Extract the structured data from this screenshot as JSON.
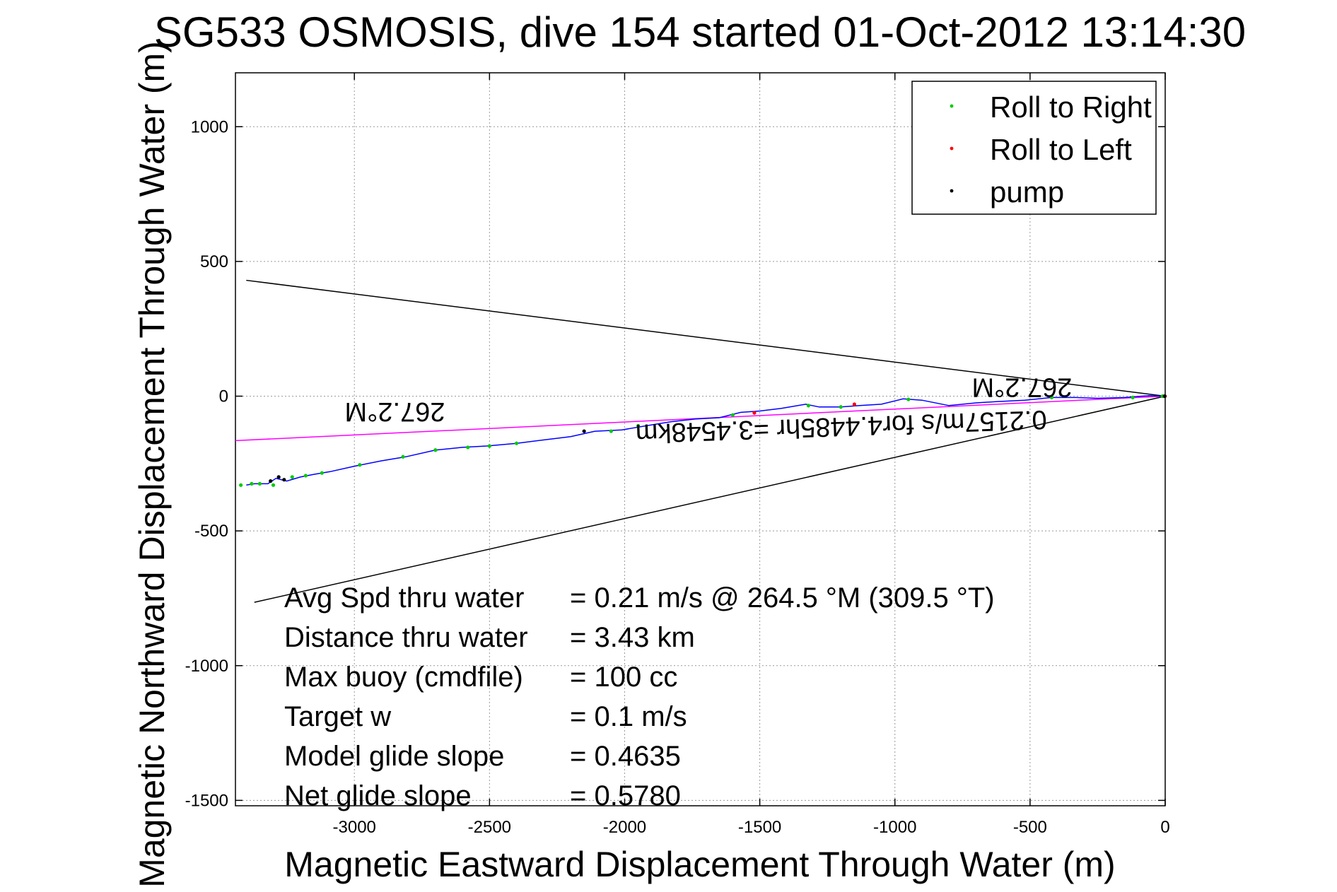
{
  "chart_data": {
    "type": "line",
    "title": "SG533 OSMOSIS, dive 154 started 01-Oct-2012 13:14:30",
    "xlabel": "Magnetic Eastward Displacement Through Water (m)",
    "ylabel": "Magnetic Northward Displacement Through Water (m)",
    "xlim": [
      -3440,
      0
    ],
    "ylim": [
      -1520,
      1200
    ],
    "xticks": [
      -3000,
      -2500,
      -2000,
      -1500,
      -1000,
      -500,
      0
    ],
    "yticks": [
      -1500,
      -1000,
      -500,
      0,
      500,
      1000
    ],
    "grid": true,
    "legend_position": "top-right",
    "legend": [
      {
        "label": "Roll to Right",
        "color": "#00cc00"
      },
      {
        "label": "Roll to Left",
        "color": "#ff0000"
      },
      {
        "label": "pump",
        "color": "#000000"
      }
    ],
    "series": [
      {
        "name": "",
        "color": "#0000ff",
        "x": [
          0,
          -60,
          -150,
          -250,
          -330,
          -420,
          -520,
          -620,
          -700,
          -800,
          -900,
          -970,
          -1050,
          -1130,
          -1200,
          -1280,
          -1330,
          -1420,
          -1500,
          -1570,
          -1650,
          -1740,
          -1830,
          -1920,
          -2010,
          -2110,
          -2200,
          -2280,
          -2400,
          -2510,
          -2600,
          -2700,
          -2810,
          -2900,
          -3000,
          -3090,
          -3150,
          -3200,
          -3250,
          -3290,
          -3320,
          -3340,
          -3370,
          -3400
        ],
        "y": [
          0,
          2,
          -5,
          -8,
          -5,
          -5,
          -15,
          -20,
          -25,
          -35,
          -15,
          -10,
          -30,
          -35,
          -40,
          -40,
          -30,
          -45,
          -55,
          -60,
          -80,
          -85,
          -95,
          -110,
          -125,
          -130,
          -150,
          -160,
          -175,
          -185,
          -190,
          -200,
          -225,
          -240,
          -260,
          -280,
          -290,
          -300,
          -315,
          -305,
          -325,
          -325,
          -325,
          -330
        ]
      }
    ],
    "markers": {
      "roll_right": {
        "x": [
          -10,
          -120,
          -420,
          -950,
          -1200,
          -1320,
          -1600,
          -1950,
          -2050,
          -2400,
          -2500,
          -2580,
          -2700,
          -2820,
          -2980,
          -3120,
          -3180,
          -3230,
          -3300,
          -3350,
          -3380,
          -3420
        ],
        "y": [
          0,
          -5,
          -5,
          -12,
          -40,
          -35,
          -70,
          -110,
          -130,
          -175,
          -185,
          -190,
          -200,
          -225,
          -255,
          -285,
          -295,
          -300,
          -330,
          -325,
          -325,
          -330
        ]
      },
      "roll_left": {
        "x": [
          -1,
          -1520,
          -1150
        ],
        "y": [
          0,
          -62,
          -30
        ]
      },
      "pump": {
        "x": [
          -2,
          -2150,
          -3260,
          -3280,
          -3310
        ],
        "y": [
          0,
          -130,
          -310,
          -300,
          -315
        ]
      }
    },
    "lines": [
      {
        "name": "",
        "color": "#000000",
        "x": [
          0,
          -3400
        ],
        "y": [
          0,
          430
        ]
      },
      {
        "name": "",
        "color": "#000000",
        "x": [
          0,
          -3370
        ],
        "y": [
          0,
          -765
        ]
      },
      {
        "name": "",
        "color": "#ff00ff",
        "x": [
          0,
          -3440
        ],
        "y": [
          0,
          -165
        ]
      }
    ],
    "annotations": [
      {
        "text": "267.2°M",
        "x": -2850,
        "y": -25,
        "rotation": 180
      },
      {
        "text": "267.2°M",
        "x": -530,
        "y": 65,
        "rotation": 180
      },
      {
        "text": "0.2157m/s for4.4485hr =3.4548km",
        "x": -1200,
        "y": -80,
        "rotation": 178
      }
    ],
    "stats": [
      {
        "label": "Avg Spd thru water",
        "value": "=  0.21 m/s @ 264.5 °M (309.5 °T)"
      },
      {
        "label": "Distance thru water",
        "value": "=  3.43 km"
      },
      {
        "label": "Max buoy (cmdfile)",
        "value": "= 100 cc"
      },
      {
        "label": "Target w",
        "value": "= 0.1 m/s"
      },
      {
        "label": "Model glide slope",
        "value": "= 0.4635"
      },
      {
        "label": "Net glide slope",
        "value": "= 0.5780"
      }
    ]
  }
}
